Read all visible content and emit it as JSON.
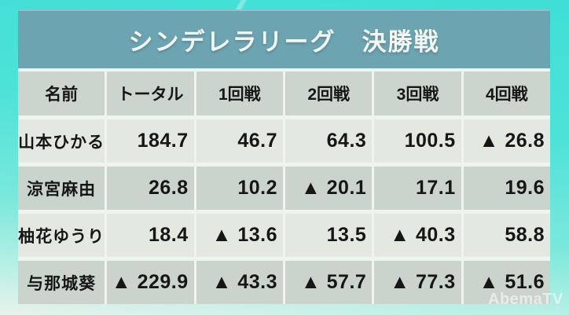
{
  "page": {
    "watermark": "AbemaTV"
  },
  "header": {
    "title": "シンデレラリーグ　決勝戦"
  },
  "table": {
    "columns": [
      "名前",
      "トータル",
      "1回戦",
      "2回戦",
      "3回戦",
      "4回戦"
    ],
    "rows": [
      {
        "name": "山本ひかる",
        "cells": [
          "184.7",
          "46.7",
          "64.3",
          "100.5",
          "▲ 26.8"
        ]
      },
      {
        "name": "涼宮麻由",
        "cells": [
          "26.8",
          "10.2",
          "▲ 20.1",
          "17.1",
          "19.6"
        ]
      },
      {
        "name": "柚花ゆうり",
        "cells": [
          "18.4",
          "▲ 13.6",
          "13.5",
          "▲ 40.3",
          "58.8"
        ]
      },
      {
        "name": "与那城葵",
        "cells": [
          "▲ 229.9",
          "▲ 43.3",
          "▲ 57.7",
          "▲ 77.3",
          "▲ 51.6"
        ]
      }
    ]
  },
  "colors": {
    "background_cyan": "#45E0D6",
    "background_fade": "#E9F2EC",
    "title_band": "#6CA4B1",
    "title_text": "#F3F7F3",
    "header_row": "#CCD5CD",
    "row_light": "#E3E8E1",
    "row_dark": "#CBD4CC",
    "divider": "#F0F4EE",
    "text": "#161616"
  },
  "chart_data": {
    "type": "table",
    "title": "シンデレラリーグ　決勝戦",
    "columns": [
      "名前",
      "トータル",
      "1回戦",
      "2回戦",
      "3回戦",
      "4回戦"
    ],
    "rows": [
      [
        "山本ひかる",
        184.7,
        46.7,
        64.3,
        100.5,
        -26.8
      ],
      [
        "涼宮麻由",
        26.8,
        10.2,
        -20.1,
        17.1,
        19.6
      ],
      [
        "柚花ゆうり",
        18.4,
        -13.6,
        13.5,
        -40.3,
        58.8
      ],
      [
        "与那城葵",
        -229.9,
        -43.3,
        -57.7,
        -77.3,
        -51.6
      ]
    ],
    "negative_marker": "▲",
    "layout": "header row + 4 player rows, alternating light/dark row backgrounds, numbers right-aligned"
  }
}
